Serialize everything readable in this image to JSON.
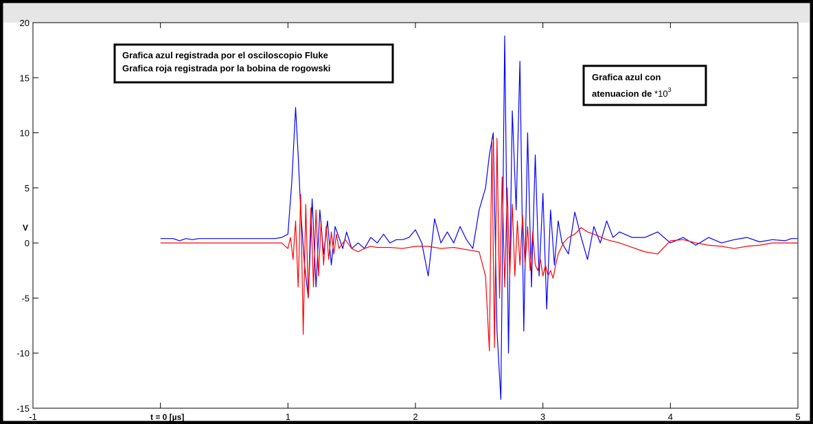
{
  "chart_data": {
    "type": "line",
    "title": "",
    "xlabel": "t = 0  [µs]",
    "ylabel": "V",
    "xlim": [
      -1,
      5
    ],
    "ylim": [
      -15,
      20
    ],
    "xticks": [
      -1,
      0,
      1,
      2,
      3,
      4,
      5
    ],
    "yticks": [
      -15,
      -10,
      -5,
      0,
      5,
      10,
      15,
      20
    ],
    "xtick_labels": [
      "-1",
      "",
      "1",
      "2",
      "3",
      "4",
      "5"
    ],
    "ytick_labels": [
      "-15",
      "-10",
      "-5",
      "0",
      "5",
      "10",
      "15",
      "20"
    ],
    "grid": false,
    "colors": {
      "blue": "#0000ff",
      "red": "#ff0000",
      "frame": "#000000",
      "band": "#e6e6e6"
    },
    "annotations": {
      "legend_line1": "Grafica azul registrada por el osciloscopio Fluke",
      "legend_line2": "Grafica roja registrada por la bobina de rogowski",
      "note_line1": "Grafica azul con",
      "note_line2_prefix": "atenuacion de ",
      "note_line2_factor": "*10",
      "note_line2_exponent": "3"
    },
    "series": [
      {
        "color": "blue",
        "x": [
          0.0,
          0.1,
          0.15,
          0.2,
          0.25,
          0.3,
          0.5,
          0.7,
          0.9,
          0.95,
          1.0,
          1.03,
          1.06,
          1.08,
          1.1,
          1.13,
          1.16,
          1.19,
          1.22,
          1.25,
          1.28,
          1.31,
          1.34,
          1.37,
          1.4,
          1.43,
          1.46,
          1.5,
          1.55,
          1.6,
          1.65,
          1.7,
          1.75,
          1.8,
          1.85,
          1.9,
          1.95,
          2.0,
          2.05,
          2.1,
          2.15,
          2.2,
          2.25,
          2.3,
          2.35,
          2.4,
          2.45,
          2.5,
          2.55,
          2.58,
          2.61,
          2.64,
          2.67,
          2.7,
          2.73,
          2.76,
          2.79,
          2.82,
          2.85,
          2.88,
          2.91,
          2.94,
          2.97,
          3.0,
          3.03,
          3.06,
          3.09,
          3.12,
          3.15,
          3.2,
          3.25,
          3.3,
          3.35,
          3.4,
          3.45,
          3.5,
          3.55,
          3.6,
          3.7,
          3.8,
          3.9,
          4.0,
          4.1,
          4.2,
          4.3,
          4.4,
          4.5,
          4.6,
          4.7,
          4.8,
          4.9,
          4.95,
          5.0
        ],
        "y": [
          0.4,
          0.4,
          0.2,
          0.4,
          0.3,
          0.4,
          0.4,
          0.4,
          0.4,
          0.5,
          0.8,
          5.5,
          12.3,
          8.0,
          3.0,
          -2.0,
          -5.0,
          4.0,
          -4.0,
          3.0,
          -1.0,
          2.0,
          -2.0,
          1.5,
          0.5,
          -0.5,
          1.0,
          -0.5,
          0.0,
          -0.5,
          0.5,
          0.0,
          0.8,
          0.0,
          0.3,
          0.3,
          0.5,
          1.2,
          0.0,
          -3.0,
          2.2,
          0.0,
          1.0,
          0.0,
          1.5,
          0.3,
          -0.5,
          3.0,
          5.0,
          8.0,
          10.0,
          -8.0,
          -14.2,
          18.8,
          -10.0,
          12.0,
          3.0,
          16.5,
          -8.0,
          10.0,
          -4.0,
          8.0,
          -3.0,
          4.5,
          -6.0,
          3.0,
          -2.0,
          2.0,
          0.0,
          -1.0,
          2.8,
          0.5,
          -1.5,
          1.5,
          0.0,
          2.0,
          0.5,
          1.0,
          0.5,
          0.5,
          1.0,
          0.0,
          0.5,
          -0.2,
          0.5,
          0.0,
          0.3,
          0.5,
          0.1,
          0.3,
          0.2,
          0.4,
          0.4
        ]
      },
      {
        "color": "red",
        "x": [
          0.0,
          0.2,
          0.4,
          0.6,
          0.8,
          0.95,
          1.0,
          1.02,
          1.04,
          1.06,
          1.08,
          1.1,
          1.12,
          1.14,
          1.16,
          1.18,
          1.2,
          1.22,
          1.24,
          1.26,
          1.28,
          1.3,
          1.32,
          1.34,
          1.36,
          1.38,
          1.4,
          1.45,
          1.5,
          1.55,
          1.6,
          1.65,
          1.7,
          1.8,
          1.9,
          2.0,
          2.1,
          2.2,
          2.3,
          2.4,
          2.5,
          2.55,
          2.58,
          2.6,
          2.62,
          2.64,
          2.66,
          2.68,
          2.7,
          2.72,
          2.74,
          2.76,
          2.78,
          2.8,
          2.82,
          2.84,
          2.86,
          2.88,
          2.9,
          2.92,
          2.94,
          2.96,
          2.98,
          3.0,
          3.02,
          3.04,
          3.06,
          3.08,
          3.1,
          3.12,
          3.14,
          3.16,
          3.2,
          3.25,
          3.3,
          3.35,
          3.4,
          3.5,
          3.6,
          3.7,
          3.8,
          3.9,
          4.0,
          4.1,
          4.2,
          4.3,
          4.4,
          4.5,
          4.6,
          4.7,
          4.8,
          4.9,
          5.0
        ],
        "y": [
          0.0,
          0.0,
          0.0,
          0.0,
          0.0,
          0.0,
          -0.5,
          0.5,
          -1.5,
          2.0,
          -4.0,
          4.4,
          -8.3,
          3.5,
          -5.0,
          3.2,
          -4.0,
          3.0,
          -3.0,
          2.0,
          -2.0,
          1.5,
          -1.5,
          1.0,
          -1.0,
          0.8,
          -0.5,
          0.3,
          -0.5,
          -0.8,
          -0.5,
          -0.3,
          -0.4,
          -0.4,
          -0.5,
          -0.3,
          -0.3,
          -0.5,
          -0.4,
          -0.6,
          -0.8,
          -3.0,
          -9.8,
          9.5,
          -9.5,
          9.5,
          -5.0,
          6.0,
          -4.0,
          5.0,
          -3.0,
          3.5,
          -3.0,
          2.0,
          -2.0,
          2.5,
          -2.0,
          1.5,
          -2.5,
          1.0,
          -2.0,
          -2.5,
          -1.5,
          -3.0,
          -2.0,
          -3.0,
          -2.5,
          -3.2,
          -2.0,
          -1.0,
          -0.5,
          0.0,
          0.5,
          0.8,
          1.4,
          1.0,
          0.8,
          0.3,
          0.0,
          -0.4,
          -0.8,
          -1.0,
          0.2,
          0.3,
          0.0,
          -0.2,
          -0.3,
          -0.5,
          -0.3,
          -0.2,
          0.0,
          0.0,
          0.0
        ]
      }
    ]
  }
}
